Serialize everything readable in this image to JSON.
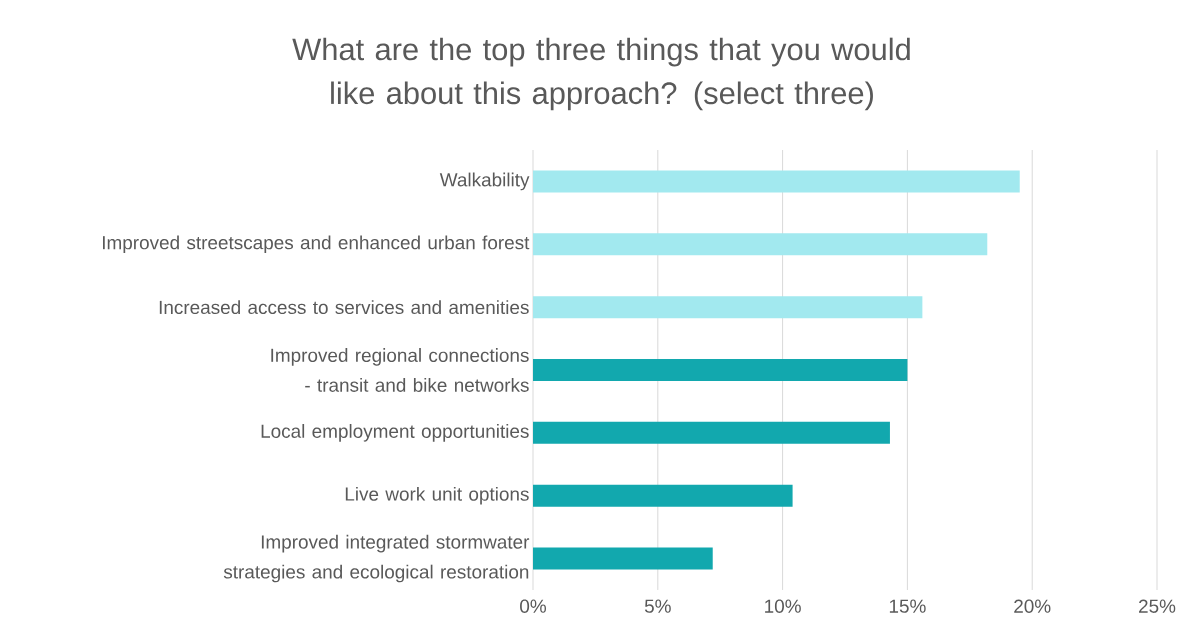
{
  "chart_data": {
    "type": "bar",
    "orientation": "horizontal",
    "title": "What are the top three things that you would like about this approach? (select three)",
    "categories": [
      "Walkability",
      "Improved streetscapes and enhanced urban forest",
      "Increased access to services and amenities",
      "Improved regional connections - transit and bike networks",
      "Local employment opportunities",
      "Live work unit options",
      "Improved integrated stormwater strategies and ecological restoration"
    ],
    "values": [
      19.5,
      18.2,
      15.6,
      15.0,
      14.3,
      10.4,
      7.2
    ],
    "colors": [
      "#a2e9ef",
      "#a2e9ef",
      "#a2e9ef",
      "#12a8ae",
      "#12a8ae",
      "#12a8ae",
      "#12a8ae"
    ],
    "xlim": [
      0,
      25
    ],
    "xticks": [
      {
        "value": 0,
        "label": "0%"
      },
      {
        "value": 5,
        "label": "5%"
      },
      {
        "value": 10,
        "label": "10%"
      },
      {
        "value": 15,
        "label": "15%"
      },
      {
        "value": 20,
        "label": "20%"
      },
      {
        "value": 25,
        "label": "25%"
      }
    ],
    "grid": "x"
  }
}
